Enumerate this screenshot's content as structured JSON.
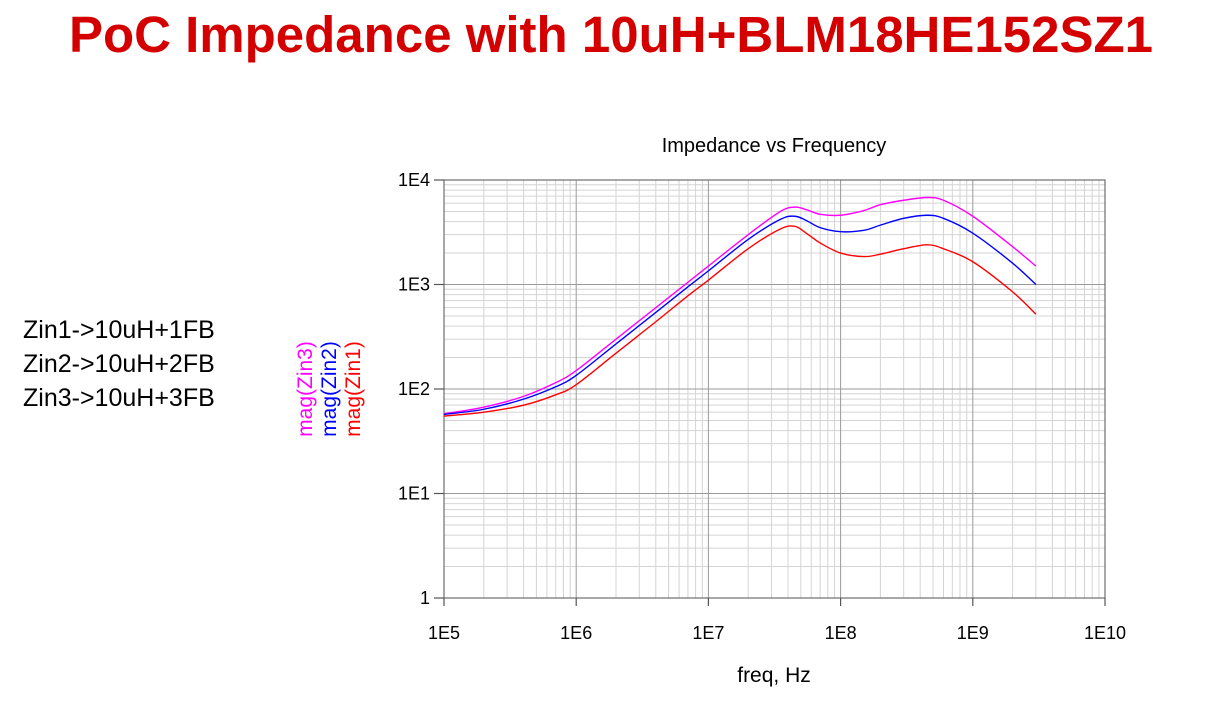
{
  "slide": {
    "title": "PoC Impedance with 10uH+BLM18HE152SZ1",
    "title_color": "#d40000",
    "notes": [
      "Zin1->10uH+1FB",
      "Zin2->10uH+2FB",
      "Zin3->10uH+3FB"
    ]
  },
  "chart_data": {
    "type": "line",
    "title": "Impedance vs Frequency",
    "xlabel": "freq, Hz",
    "ylabel": "",
    "x_scale": "log",
    "y_scale": "log",
    "xlim": [
      100000,
      10000000000
    ],
    "ylim": [
      1,
      10000
    ],
    "grid": true,
    "x_ticks": [
      {
        "value": 100000,
        "label": "1E5"
      },
      {
        "value": 1000000,
        "label": "1E6"
      },
      {
        "value": 10000000,
        "label": "1E7"
      },
      {
        "value": 100000000,
        "label": "1E8"
      },
      {
        "value": 1000000000,
        "label": "1E9"
      },
      {
        "value": 10000000000,
        "label": "1E10"
      }
    ],
    "y_ticks": [
      {
        "value": 1,
        "label": "1"
      },
      {
        "value": 10,
        "label": "1E1"
      },
      {
        "value": 100,
        "label": "1E2"
      },
      {
        "value": 1000,
        "label": "1E3"
      },
      {
        "value": 10000,
        "label": "1E4"
      }
    ],
    "legend_placement": "left-vertical",
    "x": [
      100000,
      200000,
      400000,
      700000,
      1000000,
      2000000,
      4000000,
      7000000,
      10000000,
      20000000,
      35000000,
      45000000,
      55000000,
      70000000,
      100000000,
      150000000,
      200000000,
      300000000,
      450000000,
      600000000,
      1000000000,
      2000000000,
      3000000000
    ],
    "series": [
      {
        "name": "mag(Zin3)",
        "color": "#ff00ff",
        "values": [
          58,
          67,
          85,
          115,
          150,
          300,
          600,
          1050,
          1500,
          3000,
          5000,
          5500,
          5200,
          4700,
          4600,
          5100,
          5800,
          6400,
          6800,
          6400,
          4500,
          2300,
          1500
        ]
      },
      {
        "name": "mag(Zin2)",
        "color": "#0000ff",
        "values": [
          57,
          64,
          80,
          105,
          135,
          270,
          540,
          950,
          1350,
          2700,
          4200,
          4500,
          4100,
          3500,
          3200,
          3300,
          3700,
          4300,
          4600,
          4300,
          3100,
          1600,
          1000
        ]
      },
      {
        "name": "mag(Zin1)",
        "color": "#ff0000",
        "values": [
          55,
          60,
          70,
          88,
          110,
          220,
          440,
          780,
          1100,
          2200,
          3400,
          3600,
          3100,
          2500,
          2000,
          1850,
          1950,
          2200,
          2400,
          2200,
          1650,
          850,
          520
        ]
      }
    ]
  }
}
